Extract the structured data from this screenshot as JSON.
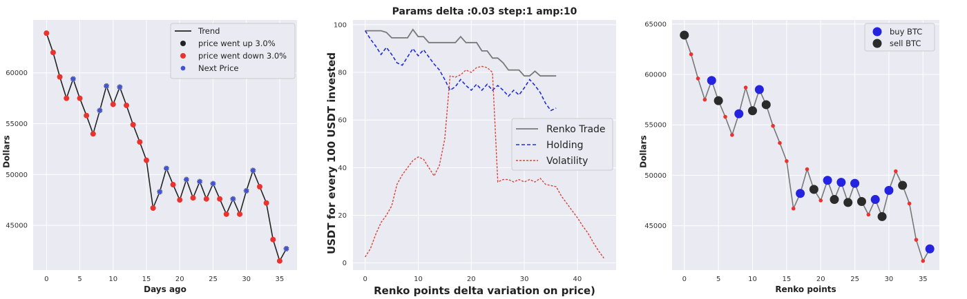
{
  "chart_data": [
    {
      "type": "line",
      "title": "",
      "xlabel": "Days ago",
      "ylabel": "Dollars",
      "xlim": [
        -2,
        37.6
      ],
      "ylim": [
        40600,
        65200
      ],
      "xticks": [
        0,
        5,
        10,
        15,
        20,
        25,
        30,
        35
      ],
      "yticks": [
        45000,
        50000,
        55000,
        60000
      ],
      "grid": true,
      "legend_position": "top-right",
      "colors": {
        "trend": "#222222",
        "up": "#222222",
        "down": "#e8332f",
        "next": "#4455cc"
      },
      "legend": [
        "Trend",
        "price went up 3.0%",
        "price went down 3.0%",
        "Next Price"
      ],
      "series": [
        {
          "name": "Trend",
          "x": [
            0,
            1,
            2,
            3,
            4,
            5,
            6,
            7,
            8,
            9,
            10,
            11,
            12,
            13,
            14,
            15,
            16,
            17,
            18,
            19,
            20,
            21,
            22,
            23,
            24,
            25,
            26,
            27,
            28,
            29,
            30,
            31,
            32,
            33,
            34,
            35,
            36
          ],
          "y": [
            63900,
            62000,
            59600,
            57500,
            59400,
            57500,
            55800,
            54000,
            56300,
            58700,
            56900,
            58600,
            56800,
            54900,
            53200,
            51400,
            46700,
            48300,
            50600,
            49000,
            47500,
            49500,
            47700,
            49300,
            47600,
            49100,
            47600,
            46100,
            47600,
            46100,
            48400,
            50400,
            48800,
            47200,
            43600,
            41500,
            42700
          ]
        },
        {
          "name": "price went up 3.0%",
          "x": [
            4,
            8,
            9,
            11,
            17,
            18,
            21,
            23,
            25,
            28,
            30,
            31,
            36
          ],
          "y": [
            59400,
            56300,
            58700,
            58600,
            48300,
            50600,
            49500,
            49300,
            49100,
            47600,
            48400,
            50400,
            42700
          ]
        },
        {
          "name": "price went down 3.0%",
          "x": [
            0,
            1,
            2,
            3,
            5,
            6,
            7,
            10,
            12,
            13,
            14,
            15,
            16,
            19,
            20,
            22,
            24,
            26,
            27,
            29,
            32,
            33,
            34,
            35
          ],
          "y": [
            63900,
            62000,
            59600,
            57500,
            57500,
            55800,
            54000,
            56900,
            56800,
            54900,
            53200,
            51400,
            46700,
            49000,
            47500,
            47700,
            47600,
            47600,
            46100,
            46100,
            48800,
            47200,
            43600,
            41500
          ]
        },
        {
          "name": "Next Price",
          "x": [
            4,
            8,
            9,
            11,
            17,
            18,
            21,
            23,
            25,
            28,
            30,
            31,
            36
          ],
          "y": [
            59400,
            56300,
            58700,
            58600,
            48300,
            50600,
            49500,
            49300,
            49100,
            47600,
            48400,
            50400,
            42700
          ]
        }
      ]
    },
    {
      "type": "line",
      "title": "Params delta :0.03 step:1 amp:10",
      "xlabel": "Renko points delta variation on price)",
      "ylabel": "USDT for every 100 USDT invested",
      "xlim": [
        -2.3,
        47.3
      ],
      "ylim": [
        -3,
        102
      ],
      "xticks": [
        0,
        10,
        20,
        30,
        40
      ],
      "yticks": [
        0,
        20,
        40,
        60,
        80,
        100
      ],
      "grid": true,
      "legend_position": "center-right",
      "colors": {
        "Renko Trade": "#777777",
        "Holding": "#1f2bd6",
        "Volatility": "#d6443a"
      },
      "legend": [
        "Renko Trade",
        "Holding",
        "Volatility"
      ],
      "series": [
        {
          "name": "Renko Trade",
          "x": [
            0,
            1,
            2,
            3,
            4,
            5,
            6,
            7,
            8,
            9,
            10,
            11,
            12,
            13,
            14,
            15,
            16,
            17,
            18,
            19,
            20,
            21,
            22,
            23,
            24,
            25,
            26,
            27,
            28,
            29,
            30,
            31,
            32,
            33,
            34,
            35,
            36
          ],
          "y": [
            97.5,
            97.5,
            97.5,
            97.5,
            96.8,
            94.5,
            94.5,
            94.5,
            94.5,
            98,
            95,
            95,
            92.5,
            92.5,
            92.5,
            92.5,
            92.5,
            92.5,
            95,
            92.5,
            92.5,
            92.5,
            89,
            89,
            86,
            86,
            84,
            81,
            81,
            81,
            78.5,
            78.5,
            80.5,
            78.5,
            78.5,
            78.5,
            78.5
          ]
        },
        {
          "name": "Holding",
          "x": [
            0,
            1,
            2,
            3,
            4,
            5,
            6,
            7,
            8,
            9,
            10,
            11,
            12,
            13,
            14,
            15,
            16,
            17,
            18,
            19,
            20,
            21,
            22,
            23,
            24,
            25,
            26,
            27,
            28,
            29,
            30,
            31,
            32,
            33,
            34,
            35,
            36
          ],
          "y": [
            97.5,
            94,
            91,
            87.5,
            90.5,
            87.5,
            84,
            83,
            86.5,
            90,
            87,
            89.5,
            86.5,
            83.5,
            81,
            77,
            72.5,
            74,
            77,
            74.5,
            72.5,
            75,
            72.5,
            75,
            72.5,
            74.5,
            72.5,
            70,
            72.5,
            70.5,
            73.5,
            77,
            74.5,
            71.5,
            67,
            64,
            65
          ]
        },
        {
          "name": "Volatility",
          "x": [
            0,
            1,
            2,
            3,
            4,
            5,
            6,
            7,
            8,
            9,
            10,
            11,
            12,
            13,
            14,
            15,
            16,
            17,
            18,
            19,
            20,
            21,
            22,
            23,
            24,
            25,
            26,
            27,
            28,
            29,
            30,
            31,
            32,
            33,
            34,
            35,
            36,
            37,
            38,
            39,
            40,
            41,
            42,
            43,
            44,
            45
          ],
          "y": [
            2.5,
            6,
            12,
            17,
            20,
            24,
            33,
            37,
            40,
            43,
            44.5,
            43.5,
            40,
            36.5,
            41,
            52,
            78.5,
            78,
            79,
            81,
            80,
            82,
            82.5,
            82,
            80,
            34,
            35,
            35,
            34,
            35,
            34,
            35,
            34,
            35.5,
            33,
            32.5,
            32,
            28,
            25,
            22,
            19,
            15.5,
            12.5,
            8.5,
            5,
            2
          ]
        }
      ]
    },
    {
      "type": "scatter",
      "title": "",
      "xlabel": "Renko points",
      "ylabel": "Dollars",
      "xlim": [
        -1.8,
        37.4
      ],
      "ylim": [
        40600,
        65400
      ],
      "xticks": [
        0,
        5,
        10,
        15,
        20,
        25,
        30,
        35
      ],
      "yticks": [
        45000,
        50000,
        55000,
        60000,
        65000
      ],
      "grid": true,
      "legend_position": "top-right",
      "colors": {
        "line": "#777777",
        "small": "#e8332f",
        "buy BTC": "#2323e0",
        "sell BTC": "#2b2b2b"
      },
      "legend": [
        "buy BTC",
        "sell BTC"
      ],
      "price": {
        "x": [
          0,
          1,
          2,
          3,
          4,
          5,
          6,
          7,
          8,
          9,
          10,
          11,
          12,
          13,
          14,
          15,
          16,
          17,
          18,
          19,
          20,
          21,
          22,
          23,
          24,
          25,
          26,
          27,
          28,
          29,
          30,
          31,
          32,
          33,
          34,
          35,
          36
        ],
        "y": [
          63900,
          62000,
          59600,
          57500,
          59400,
          57400,
          55800,
          54000,
          56100,
          58700,
          56400,
          58500,
          57000,
          54900,
          53200,
          51400,
          46700,
          48200,
          50600,
          48600,
          47500,
          49500,
          47600,
          49300,
          47300,
          49200,
          47400,
          46100,
          47600,
          45900,
          48500,
          50400,
          49000,
          47200,
          43600,
          41500,
          42700
        ]
      },
      "series": [
        {
          "name": "buy BTC",
          "x": [
            4,
            8,
            11,
            17,
            21,
            23,
            25,
            28,
            30,
            36
          ],
          "y": [
            59400,
            56100,
            58500,
            48200,
            49500,
            49300,
            49200,
            47600,
            48500,
            42700
          ]
        },
        {
          "name": "sell BTC",
          "x": [
            0,
            5,
            10,
            12,
            19,
            22,
            24,
            26,
            29,
            32
          ],
          "y": [
            63900,
            57400,
            56400,
            57000,
            48600,
            47600,
            47300,
            47400,
            45900,
            49000
          ]
        }
      ]
    }
  ]
}
